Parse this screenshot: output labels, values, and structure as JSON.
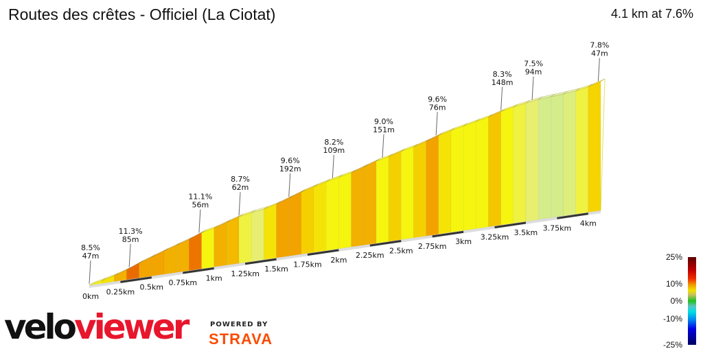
{
  "title": "Routes des crêtes - Officiel (La Ciotat)",
  "summary": "4.1 km at 7.6%",
  "chart_data": {
    "type": "area",
    "title": "Routes des crêtes - Officiel (La Ciotat)",
    "distance_km": 4.1,
    "avg_gradient_pct": 7.6,
    "segment_length_km": 0.1,
    "gradients_pct": [
      6,
      7,
      9,
      11.3,
      9.5,
      9.5,
      9,
      9,
      11.1,
      6,
      9,
      8.7,
      5,
      4,
      7,
      9.6,
      9.6,
      8,
      7,
      6,
      6,
      9,
      9,
      6,
      8,
      6,
      8,
      9.6,
      7,
      6,
      6,
      6,
      8.3,
      6,
      5,
      4,
      2,
      2,
      3,
      5,
      7.8
    ],
    "x_ticks": [
      "0km",
      "0.25km",
      "0.5km",
      "0.75km",
      "1km",
      "1.25km",
      "1.5km",
      "1.75km",
      "2km",
      "2.25km",
      "2.5km",
      "2.75km",
      "3km",
      "3.25km",
      "3.5km",
      "3.75km",
      "4km"
    ],
    "annotations": [
      {
        "km": 0.0,
        "pct": "8.5%",
        "len": "47m"
      },
      {
        "km": 0.32,
        "pct": "11.3%",
        "len": "85m"
      },
      {
        "km": 0.88,
        "pct": "11.1%",
        "len": "56m"
      },
      {
        "km": 1.2,
        "pct": "8.7%",
        "len": "62m"
      },
      {
        "km": 1.6,
        "pct": "9.6%",
        "len": "192m"
      },
      {
        "km": 1.95,
        "pct": "8.2%",
        "len": "109m"
      },
      {
        "km": 2.35,
        "pct": "9.0%",
        "len": "151m"
      },
      {
        "km": 2.78,
        "pct": "9.6%",
        "len": "76m"
      },
      {
        "km": 3.3,
        "pct": "8.3%",
        "len": "148m"
      },
      {
        "km": 3.55,
        "pct": "7.5%",
        "len": "94m"
      },
      {
        "km": 4.08,
        "pct": "7.8%",
        "len": "47m"
      }
    ],
    "legend": {
      "labels": [
        "25%",
        "10%",
        "0%",
        "-10%",
        "-25%"
      ]
    }
  },
  "branding": {
    "logo_a": "velo",
    "logo_b": "viewer",
    "powered": "POWERED BY",
    "strava": "STRAVA"
  }
}
